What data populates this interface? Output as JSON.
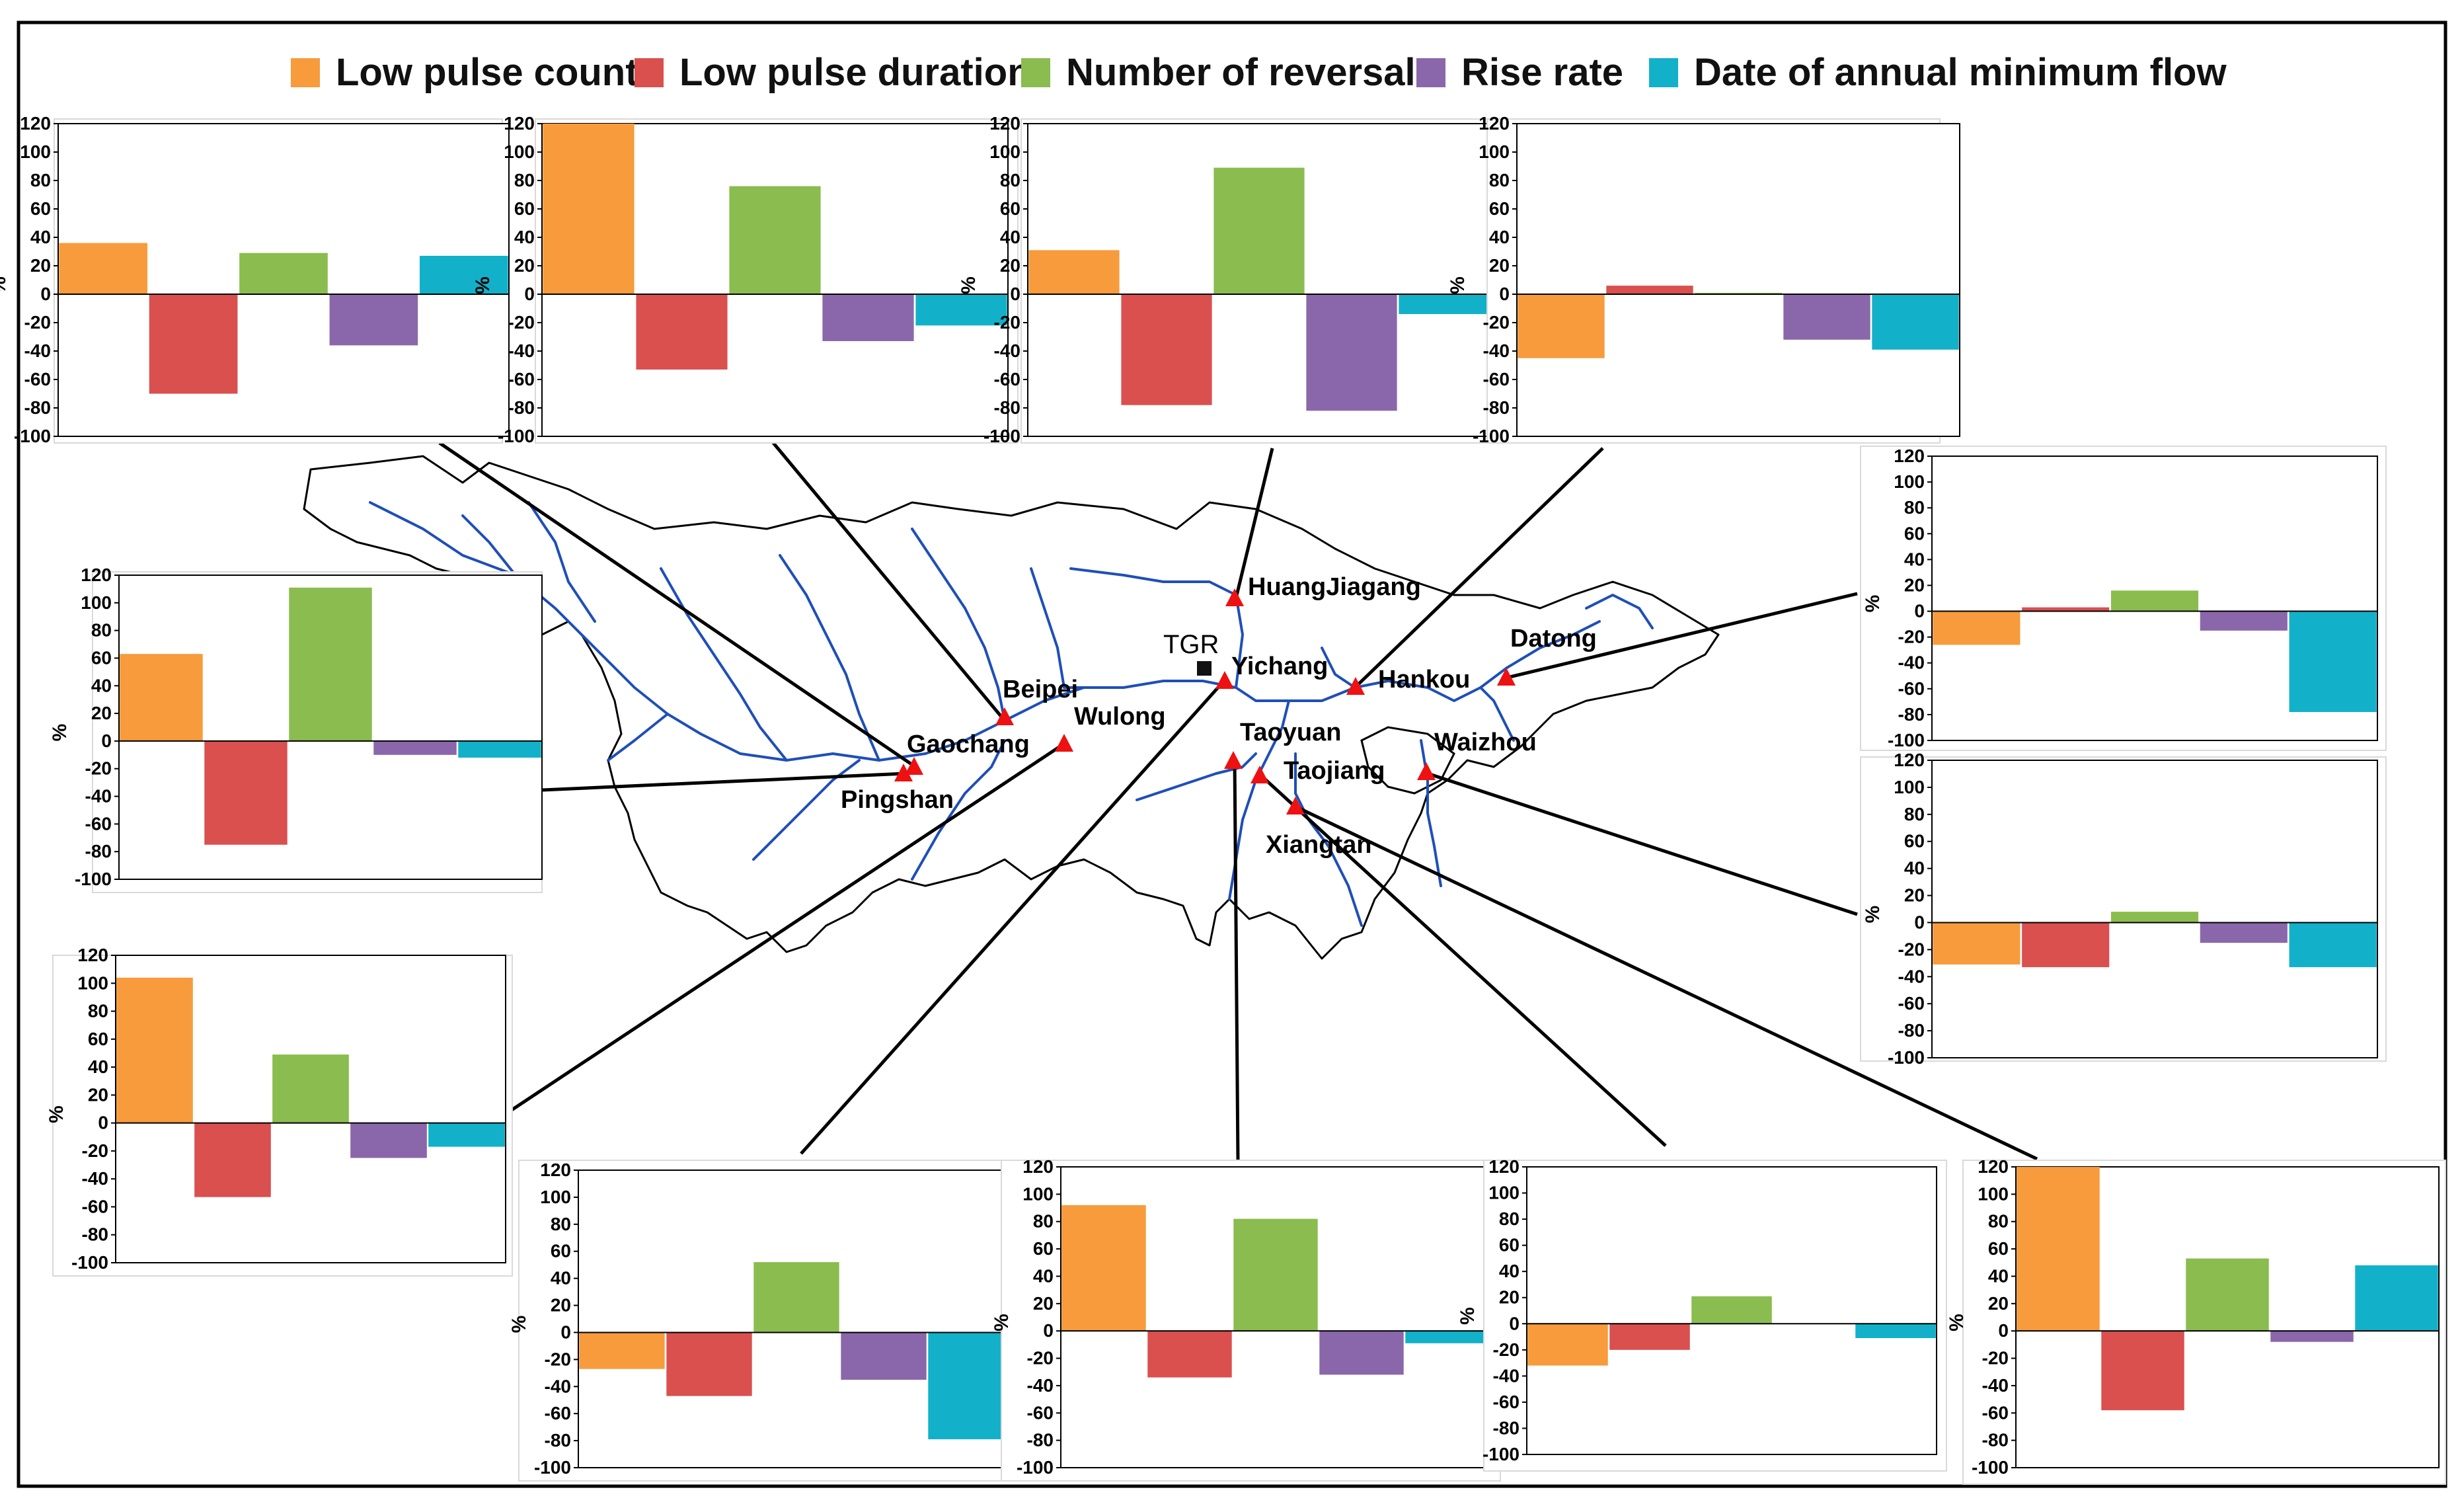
{
  "legend": [
    {
      "label": "Low pulse count",
      "color": "#f79b3c"
    },
    {
      "label": "Low pulse duration",
      "color": "#d9504e"
    },
    {
      "label": "Number of reversals",
      "color": "#8bbc4f"
    },
    {
      "label": "Rise rate",
      "color": "#8a67aa"
    },
    {
      "label": "Date of annual minimum flow",
      "color": "#12b1c9"
    }
  ],
  "map": {
    "tgr_label": "TGR",
    "stations": [
      {
        "name": "HuangJiagang"
      },
      {
        "name": "Yichang"
      },
      {
        "name": "Hankou"
      },
      {
        "name": "Datong"
      },
      {
        "name": "Beipei"
      },
      {
        "name": "Wulong"
      },
      {
        "name": "Gaochang"
      },
      {
        "name": "Pingshan"
      },
      {
        "name": "Taoyuan"
      },
      {
        "name": "Taojiang"
      },
      {
        "name": "Xiangtan"
      },
      {
        "name": "Waizhou"
      }
    ],
    "river_color": "#1f4fb8",
    "marker_color": "#ee1111"
  },
  "chart_data": [
    {
      "type": "bar",
      "title": "",
      "station": "Gaochang",
      "ylabel": "%",
      "ylim": [
        -100,
        120
      ],
      "yticks": [
        120,
        100,
        80,
        60,
        40,
        20,
        0,
        -20,
        -40,
        -60,
        -80,
        -100
      ],
      "categories": [
        "Low pulse count",
        "Low pulse duration",
        "Number of reversals",
        "Rise rate",
        "Date of annual minimum flow"
      ],
      "values": [
        36,
        -70,
        29,
        -36,
        27
      ]
    },
    {
      "type": "bar",
      "title": "",
      "station": "Beipei",
      "ylabel": "%",
      "ylim": [
        -100,
        120
      ],
      "yticks": [
        120,
        100,
        80,
        60,
        40,
        20,
        0,
        -20,
        -40,
        -60,
        -80,
        -100
      ],
      "categories": [
        "Low pulse count",
        "Low pulse duration",
        "Number of reversals",
        "Rise rate",
        "Date of annual minimum flow"
      ],
      "values": [
        120,
        -53,
        76,
        -33,
        -22
      ]
    },
    {
      "type": "bar",
      "title": "",
      "station": "HuangJiagang",
      "ylabel": "%",
      "ylim": [
        -100,
        120
      ],
      "yticks": [
        120,
        100,
        80,
        60,
        40,
        20,
        0,
        -20,
        -40,
        -60,
        -80,
        -100
      ],
      "categories": [
        "Low pulse count",
        "Low pulse duration",
        "Number of reversals",
        "Rise rate",
        "Date of annual minimum flow"
      ],
      "values": [
        31,
        -78,
        89,
        -82,
        -14
      ]
    },
    {
      "type": "bar",
      "title": "",
      "station": "Hankou",
      "ylabel": "%",
      "ylim": [
        -100,
        120
      ],
      "yticks": [
        120,
        100,
        80,
        60,
        40,
        20,
        0,
        -20,
        -40,
        -60,
        -80,
        -100
      ],
      "categories": [
        "Low pulse count",
        "Low pulse duration",
        "Number of reversals",
        "Rise rate",
        "Date of annual minimum flow"
      ],
      "values": [
        -45,
        6,
        1,
        -32,
        -39
      ]
    },
    {
      "type": "bar",
      "title": "",
      "station": "Datong",
      "ylabel": "%",
      "ylim": [
        -100,
        120
      ],
      "yticks": [
        120,
        100,
        80,
        60,
        40,
        20,
        0,
        -20,
        -40,
        -60,
        -80,
        -100
      ],
      "categories": [
        "Low pulse count",
        "Low pulse duration",
        "Number of reversals",
        "Rise rate",
        "Date of annual minimum flow"
      ],
      "values": [
        -26,
        3,
        16,
        -15,
        -78
      ]
    },
    {
      "type": "bar",
      "title": "",
      "station": "Pingshan",
      "ylabel": "%",
      "ylim": [
        -100,
        120
      ],
      "yticks": [
        120,
        100,
        80,
        60,
        40,
        20,
        0,
        -20,
        -40,
        -60,
        -80,
        -100
      ],
      "categories": [
        "Low pulse count",
        "Low pulse duration",
        "Number of reversals",
        "Rise rate",
        "Date of annual minimum flow"
      ],
      "values": [
        63,
        -75,
        111,
        -10,
        -12
      ]
    },
    {
      "type": "bar",
      "title": "",
      "station": "Waizhou",
      "ylabel": "%",
      "ylim": [
        -100,
        120
      ],
      "yticks": [
        120,
        100,
        80,
        60,
        40,
        20,
        0,
        -20,
        -40,
        -60,
        -80,
        -100
      ],
      "categories": [
        "Low pulse count",
        "Low pulse duration",
        "Number of reversals",
        "Rise rate",
        "Date of annual minimum flow"
      ],
      "values": [
        -31,
        -33,
        8,
        -15,
        -33
      ]
    },
    {
      "type": "bar",
      "title": "",
      "station": "Wulong",
      "ylabel": "%",
      "ylim": [
        -100,
        120
      ],
      "yticks": [
        120,
        100,
        80,
        60,
        40,
        20,
        0,
        -20,
        -40,
        -60,
        -80,
        -100
      ],
      "categories": [
        "Low pulse count",
        "Low pulse duration",
        "Number of reversals",
        "Rise rate",
        "Date of annual minimum flow"
      ],
      "values": [
        104,
        -53,
        49,
        -25,
        -17
      ]
    },
    {
      "type": "bar",
      "title": "",
      "station": "Yichang",
      "ylabel": "%",
      "ylim": [
        -100,
        120
      ],
      "yticks": [
        120,
        100,
        80,
        60,
        40,
        20,
        0,
        -20,
        -40,
        -60,
        -80,
        -100
      ],
      "categories": [
        "Low pulse count",
        "Low pulse duration",
        "Number of reversals",
        "Rise rate",
        "Date of annual minimum flow"
      ],
      "values": [
        -27,
        -47,
        52,
        -35,
        -79
      ]
    },
    {
      "type": "bar",
      "title": "",
      "station": "Taoyuan",
      "ylabel": "%",
      "ylim": [
        -100,
        120
      ],
      "yticks": [
        120,
        100,
        80,
        60,
        40,
        20,
        0,
        -20,
        -40,
        -60,
        -80,
        -100
      ],
      "categories": [
        "Low pulse count",
        "Low pulse duration",
        "Number of reversals",
        "Rise rate",
        "Date of annual minimum flow"
      ],
      "values": [
        92,
        -34,
        82,
        -32,
        -9
      ]
    },
    {
      "type": "bar",
      "title": "",
      "station": "Taojiang",
      "ylabel": "%",
      "ylim": [
        -100,
        120
      ],
      "yticks": [
        120,
        100,
        80,
        60,
        40,
        20,
        0,
        -20,
        -40,
        -60,
        -80,
        -100
      ],
      "categories": [
        "Low pulse count",
        "Low pulse duration",
        "Number of reversals",
        "Rise rate",
        "Date of annual minimum flow"
      ],
      "values": [
        -32,
        -20,
        21,
        0,
        -11
      ]
    },
    {
      "type": "bar",
      "title": "",
      "station": "Xiangtan",
      "ylabel": "%",
      "ylim": [
        -100,
        120
      ],
      "yticks": [
        120,
        100,
        80,
        60,
        40,
        20,
        0,
        -20,
        -40,
        -60,
        -80,
        -100
      ],
      "categories": [
        "Low pulse count",
        "Low pulse duration",
        "Number of reversals",
        "Rise rate",
        "Date of annual minimum flow"
      ],
      "values": [
        120,
        -58,
        53,
        -8,
        48
      ]
    }
  ]
}
